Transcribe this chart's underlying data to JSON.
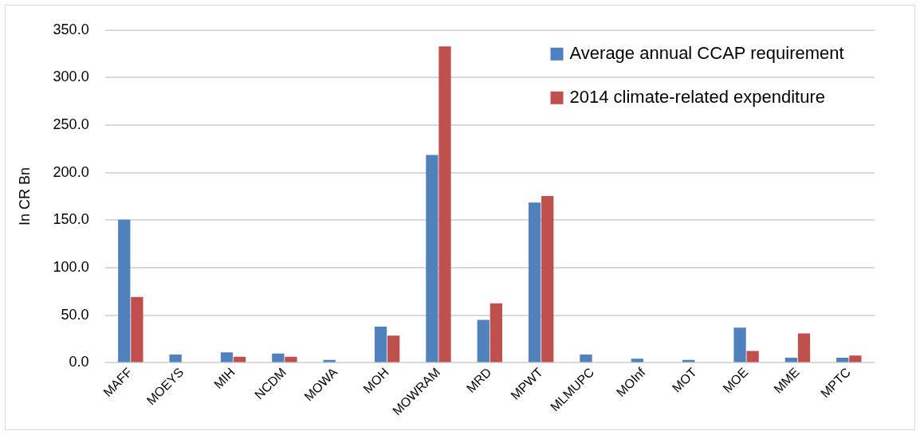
{
  "chart_data": {
    "type": "bar",
    "ylabel": "In CR Bn",
    "categories": [
      "MAFF",
      "MOEYS",
      "MIH",
      "NCDM",
      "MOWA",
      "MOH",
      "MOWRAM",
      "MRD",
      "MPWT",
      "MLMUPC",
      "MOInf",
      "MOT",
      "MOE",
      "MME",
      "MPTC"
    ],
    "series": [
      {
        "name": "Average annual CCAP requirement",
        "color": "#4f81bd",
        "values": [
          150.6,
          8.7,
          11.1,
          9.8,
          3.0,
          38.0,
          218.6,
          45.1,
          168.5,
          8.7,
          4.4,
          3.0,
          37.0,
          5.4,
          5.4
        ]
      },
      {
        "name": "2014 climate-related expenditure",
        "color": "#c0504d",
        "values": [
          69.3,
          0,
          6.4,
          6.4,
          0,
          28.6,
          332.9,
          62.5,
          175.5,
          0,
          0,
          0,
          12.4,
          30.9,
          7.7
        ]
      }
    ],
    "ylim": [
      0,
      350
    ],
    "yticks": [
      {
        "value": 0,
        "label": "0.0"
      },
      {
        "value": 50,
        "label": "50.0"
      },
      {
        "value": 100,
        "label": "100.0"
      },
      {
        "value": 150,
        "label": "150.0"
      },
      {
        "value": 200,
        "label": "200.0"
      },
      {
        "value": 250,
        "label": "250.0"
      },
      {
        "value": 300,
        "label": "300.0"
      },
      {
        "value": 350,
        "label": "350.0"
      }
    ],
    "grid": "y",
    "legend": "top right"
  }
}
